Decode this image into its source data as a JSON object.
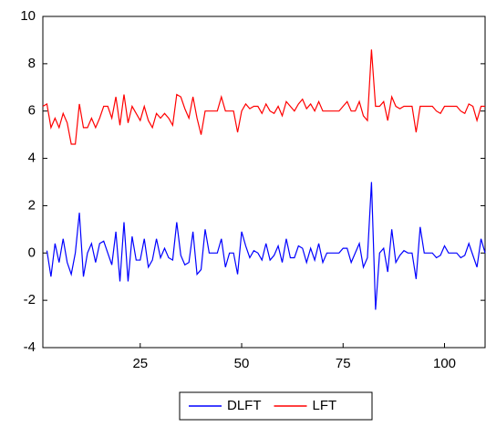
{
  "chart_data": {
    "type": "line",
    "x": [
      1,
      2,
      3,
      4,
      5,
      6,
      7,
      8,
      9,
      10,
      11,
      12,
      13,
      14,
      15,
      16,
      17,
      18,
      19,
      20,
      21,
      22,
      23,
      24,
      25,
      26,
      27,
      28,
      29,
      30,
      31,
      32,
      33,
      34,
      35,
      36,
      37,
      38,
      39,
      40,
      41,
      42,
      43,
      44,
      45,
      46,
      47,
      48,
      49,
      50,
      51,
      52,
      53,
      54,
      55,
      56,
      57,
      58,
      59,
      60,
      61,
      62,
      63,
      64,
      65,
      66,
      67,
      68,
      69,
      70,
      71,
      72,
      73,
      74,
      75,
      76,
      77,
      78,
      79,
      80,
      81,
      82,
      83,
      84,
      85,
      86,
      87,
      88,
      89,
      90,
      91,
      92,
      93,
      94,
      95,
      96,
      97,
      98,
      99,
      100,
      101,
      102,
      103,
      104,
      105,
      106,
      107,
      108,
      109,
      110
    ],
    "series": [
      {
        "name": "DLFT",
        "color": "#0000ff",
        "values": [
          null,
          0.1,
          -1.0,
          0.4,
          -0.4,
          0.6,
          -0.4,
          -0.9,
          0.0,
          1.7,
          -1.0,
          0.0,
          0.4,
          -0.4,
          0.4,
          0.5,
          0.0,
          -0.5,
          0.9,
          -1.2,
          1.3,
          -1.2,
          0.7,
          -0.3,
          -0.3,
          0.6,
          -0.6,
          -0.3,
          0.6,
          -0.2,
          0.2,
          -0.2,
          -0.3,
          1.3,
          -0.1,
          -0.5,
          -0.4,
          0.9,
          -0.9,
          -0.7,
          1.0,
          0,
          0,
          0,
          0.6,
          -0.6,
          0,
          0,
          -0.9,
          0.9,
          0.3,
          -0.2,
          0.1,
          0,
          -0.3,
          0.4,
          -0.3,
          -0.1,
          0.3,
          -0.4,
          0.6,
          -0.2,
          -0.2,
          0.3,
          0.2,
          -0.4,
          0.2,
          -0.3,
          0.4,
          -0.4,
          0,
          0,
          0,
          0,
          0.2,
          0.2,
          -0.4,
          0,
          0.4,
          -0.6,
          -0.2,
          3.0,
          -2.4,
          0,
          0.2,
          -0.8,
          1.0,
          -0.4,
          -0.1,
          0.1,
          0,
          0,
          -1.1,
          1.1,
          0,
          0,
          0,
          -0.2,
          -0.1,
          0.3,
          0,
          0,
          0,
          -0.2,
          -0.1,
          0.4,
          -0.1,
          -0.6,
          0.6,
          0
        ]
      },
      {
        "name": "LFT",
        "color": "#ff0000",
        "values": [
          6.2,
          6.3,
          5.3,
          5.7,
          5.3,
          5.9,
          5.5,
          4.6,
          4.6,
          6.3,
          5.3,
          5.3,
          5.7,
          5.3,
          5.7,
          6.2,
          6.2,
          5.7,
          6.6,
          5.4,
          6.7,
          5.5,
          6.2,
          5.9,
          5.6,
          6.2,
          5.6,
          5.3,
          5.9,
          5.7,
          5.9,
          5.7,
          5.4,
          6.7,
          6.6,
          6.1,
          5.7,
          6.6,
          5.7,
          5.0,
          6.0,
          6.0,
          6.0,
          6.0,
          6.6,
          6.0,
          6.0,
          6.0,
          5.1,
          6.0,
          6.3,
          6.1,
          6.2,
          6.2,
          5.9,
          6.3,
          6.0,
          5.9,
          6.2,
          5.8,
          6.4,
          6.2,
          6.0,
          6.3,
          6.5,
          6.1,
          6.3,
          6.0,
          6.4,
          6.0,
          6.0,
          6.0,
          6.0,
          6.0,
          6.2,
          6.4,
          6.0,
          6.0,
          6.4,
          5.8,
          5.6,
          8.6,
          6.2,
          6.2,
          6.4,
          5.6,
          6.6,
          6.2,
          6.1,
          6.2,
          6.2,
          6.2,
          5.1,
          6.2,
          6.2,
          6.2,
          6.2,
          6.0,
          5.9,
          6.2,
          6.2,
          6.2,
          6.2,
          6.0,
          5.9,
          6.3,
          6.2,
          5.6,
          6.2,
          6.2
        ]
      }
    ],
    "xlim": [
      1,
      110
    ],
    "xticks": [
      25,
      50,
      75,
      100
    ],
    "ylim": [
      -4,
      10
    ],
    "yticks": [
      -4,
      -2,
      0,
      2,
      4,
      6,
      8,
      10
    ],
    "grid": false,
    "legend": "bottom"
  }
}
